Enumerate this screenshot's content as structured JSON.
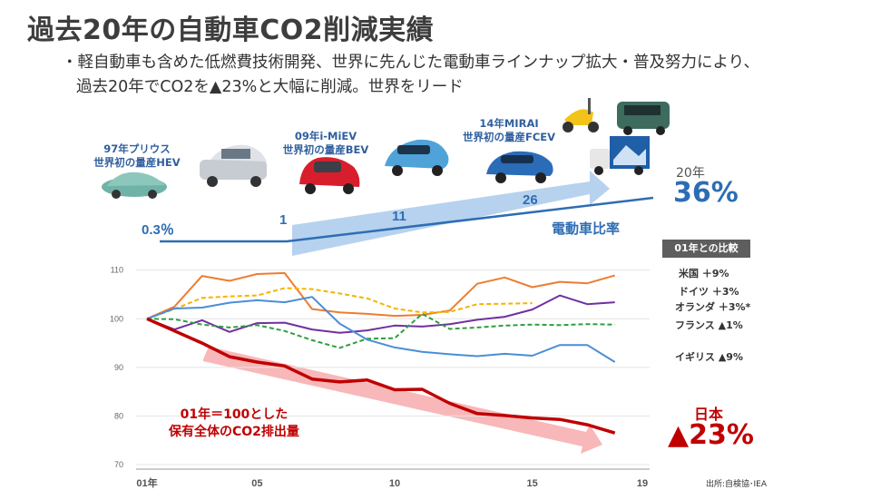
{
  "title": "過去20年の自動車CO2削減実績",
  "bullet": {
    "line1": "・軽自動車も含めた低燃費技術開発、世界に先んじた電動車ラインナップ拡大・普及努力により、",
    "line2": "過去20年でCO2を▲23%と大幅に削減。世界をリード"
  },
  "milestones": [
    {
      "line1": "97年プリウス",
      "line2": "世界初の量産HEV"
    },
    {
      "line1": "09年i-MiEV",
      "line2": "世界初の量産BEV"
    },
    {
      "line1": "14年MIRAI",
      "line2": "世界初の量産FCEV"
    }
  ],
  "ev_ratio": {
    "label": "電動車比率",
    "year_label": "20年",
    "final_value": "36%",
    "points": [
      {
        "text": "0.3％",
        "value": 0.3
      },
      {
        "text": "1",
        "value": 1
      },
      {
        "text": "11",
        "value": 11
      },
      {
        "text": "26",
        "value": 26
      }
    ]
  },
  "legend": {
    "header": "01年との比較",
    "items": [
      {
        "text": "米国 ＋9%",
        "color": "#ed7d31"
      },
      {
        "text": "ドイツ ＋3%",
        "color": "#7030a0"
      },
      {
        "text": "オランダ ＋3%*",
        "color": "#f4b400"
      },
      {
        "text": "フランス ▲1%",
        "color": "#2e9e3e"
      },
      {
        "text": "イギリス ▲9%",
        "color": "#4a8ed6"
      }
    ]
  },
  "japan": {
    "label": "日本",
    "value": "▲23%",
    "color": "#c00000"
  },
  "note": {
    "line1": "01年＝100とした",
    "line2": "保有全体のCO2排出量"
  },
  "source": "出所:自検協･IEA",
  "chart_data": {
    "type": "line",
    "x": [
      2001,
      2002,
      2003,
      2004,
      2005,
      2006,
      2007,
      2008,
      2009,
      2010,
      2011,
      2012,
      2013,
      2014,
      2015,
      2016,
      2017,
      2018,
      2019
    ],
    "xtick_labels": [
      "01年",
      "05",
      "10",
      "15",
      "19"
    ],
    "xtick_values": [
      2001,
      2005,
      2010,
      2015,
      2019
    ],
    "ytick_labels": [
      "110",
      "100",
      "90",
      "80",
      "70"
    ],
    "ytick_values": [
      110,
      100,
      90,
      80,
      70
    ],
    "ylim": [
      70,
      112
    ],
    "xlim": [
      2001,
      2019
    ],
    "series": [
      {
        "name": "米国",
        "color": "#ed7d31",
        "dash": false,
        "width": 2,
        "values": [
          100,
          102.5,
          108.8,
          107.8,
          109.2,
          109.4,
          102.0,
          101.3,
          101.0,
          100.6,
          100.8,
          101.7,
          107.2,
          108.5,
          106.5,
          107.6,
          107.3,
          108.9,
          null
        ]
      },
      {
        "name": "ドイツ",
        "color": "#7030a0",
        "dash": false,
        "width": 2,
        "values": [
          100,
          97.8,
          99.7,
          97.3,
          99.1,
          99.2,
          97.8,
          97.1,
          97.6,
          98.6,
          98.4,
          98.9,
          99.8,
          100.4,
          101.9,
          104.8,
          103.0,
          103.4,
          null
        ]
      },
      {
        "name": "オランダ",
        "color": "#f4b400",
        "dash": true,
        "width": 2,
        "values": [
          100,
          102.0,
          104.3,
          104.6,
          104.8,
          106.3,
          106.1,
          105.2,
          104.2,
          102.1,
          101.3,
          101.4,
          103.0,
          103.1,
          103.2,
          null,
          null,
          null,
          null
        ]
      },
      {
        "name": "フランス",
        "color": "#2e9e3e",
        "dash": true,
        "width": 2,
        "values": [
          100,
          99.9,
          98.8,
          98.2,
          98.7,
          97.5,
          95.6,
          94.0,
          95.9,
          96.0,
          101.0,
          97.9,
          98.2,
          98.6,
          98.8,
          98.7,
          98.9,
          98.8,
          null
        ]
      },
      {
        "name": "イギリス",
        "color": "#4a8ed6",
        "dash": false,
        "width": 2,
        "values": [
          100,
          102.1,
          102.3,
          103.3,
          103.8,
          103.4,
          104.5,
          99.0,
          95.7,
          94.1,
          93.2,
          92.7,
          92.3,
          92.8,
          92.4,
          94.6,
          94.6,
          91.1,
          null
        ]
      },
      {
        "name": "日本",
        "color": "#c00000",
        "dash": false,
        "width": 3.5,
        "values": [
          100,
          97.5,
          95.0,
          92.2,
          91.1,
          90.3,
          87.6,
          87.0,
          87.4,
          85.4,
          85.5,
          82.6,
          80.5,
          80.1,
          79.6,
          79.3,
          78.2,
          76.5,
          null
        ]
      }
    ]
  }
}
